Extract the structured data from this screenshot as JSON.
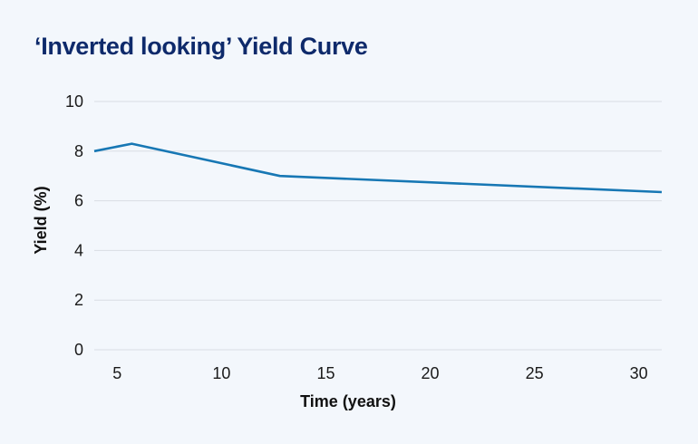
{
  "chart_data": {
    "type": "line",
    "title": "‘Inverted looking’ Yield Curve",
    "xlabel": "Time (years)",
    "ylabel": "Yield (%)",
    "xlim": [
      3.9,
      31.1
    ],
    "ylim": [
      0,
      10
    ],
    "xticks": [
      5,
      10,
      15,
      20,
      25,
      30
    ],
    "yticks": [
      0,
      2,
      4,
      6,
      8,
      10
    ],
    "grid": "horizontal",
    "legend": "none",
    "series": [
      {
        "x": [
          3.9,
          5.7,
          12.8,
          31.1
        ],
        "y": [
          8.0,
          8.3,
          7.0,
          6.35
        ]
      }
    ],
    "colors": {
      "line": "#1777b4",
      "grid": "#d9dde3",
      "title": "#0e2a6b"
    }
  }
}
